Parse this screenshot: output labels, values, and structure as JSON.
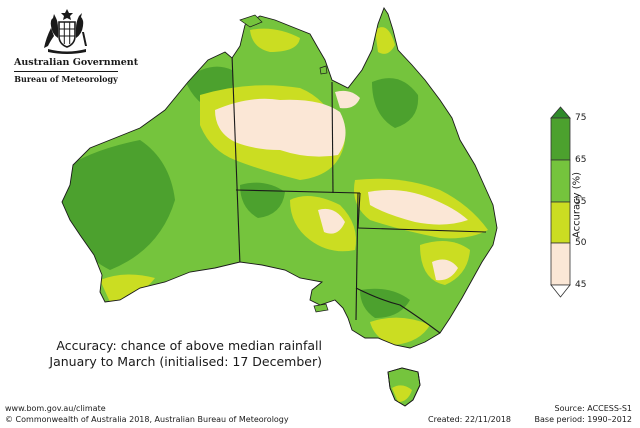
{
  "header": {
    "government": "Australian Government",
    "agency": "Bureau of Meteorology",
    "crest_icon": "commonwealth-coat-of-arms"
  },
  "map": {
    "title_line1": "Accuracy: chance of above median rainfall",
    "title_line2": "January to March (initialised: 17 December)",
    "colors": {
      "below_45": "#ffffff",
      "45_50": "#fbe7d6",
      "50_55": "#cbdd22",
      "55_65": "#75c43d",
      "65_75": "#4ca12e",
      "above_75": "#2f8a2a",
      "water": "#ffffff",
      "border": "#1a1a1a"
    }
  },
  "legend": {
    "title": "Accuracy (%)",
    "ticks": [
      "45",
      "50",
      "55",
      "65",
      "75"
    ]
  },
  "footer": {
    "url": "www.bom.gov.au/climate",
    "copyright": "© Commonwealth of Australia 2018, Australian Bureau of Meteorology",
    "created": "Created: 22/11/2018",
    "source": "Source: ACCESS-S1",
    "base_period": "Base period: 1990–2012"
  }
}
